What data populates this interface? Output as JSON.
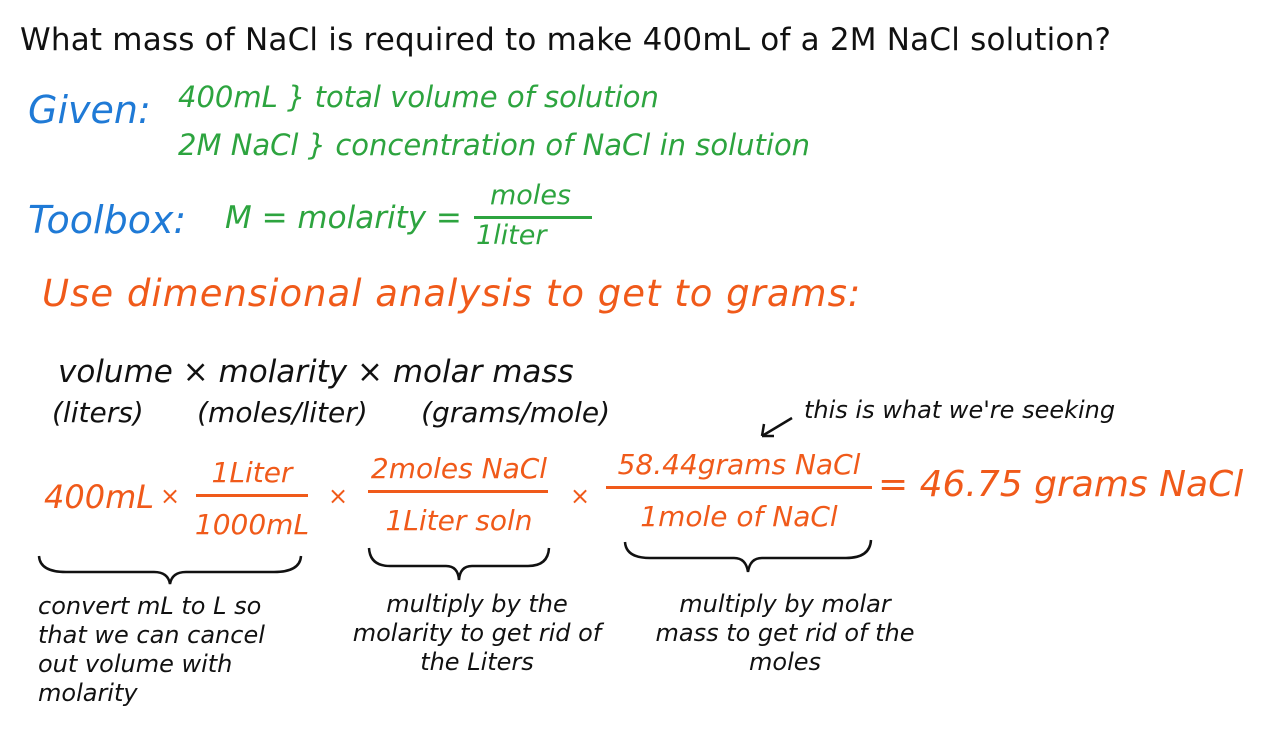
{
  "question": "What mass of NaCl is required to make 400mL of a 2M NaCl solution?",
  "given": {
    "label": "Given:",
    "item1": "400mL } total volume of solution",
    "item2": "2M NaCl } concentration of NaCl in solution"
  },
  "toolbox": {
    "label": "Toolbox:",
    "formula": "M = molarity =",
    "numerator": "moles",
    "denominator": "1liter"
  },
  "heading": "Use dimensional analysis to get to grams:",
  "formula_line": {
    "text": "volume × molarity × molar mass",
    "units": "(liters)      (moles/liter)      (grams/mole)"
  },
  "seeking": "this is what we're seeking",
  "calculation": {
    "start": "400mL",
    "times": "×",
    "f1_num": "1Liter",
    "f1_den": "1000mL",
    "f2_num": "2moles NaCl",
    "f2_den": "1Liter soln",
    "f3_num": "58.44grams NaCl",
    "f3_den": "1mole of NaCl",
    "result": "= 46.75 grams NaCl"
  },
  "notes": {
    "note1": "convert mL to L so that we can cancel out volume with molarity",
    "note2": "multiply by the molarity to get rid of the Liters",
    "note3": "multiply by molar mass to get rid of the moles"
  },
  "colors": {
    "blue": "#1f7ad6",
    "green": "#2da43f",
    "orange": "#f05a1a",
    "black": "#111111"
  }
}
